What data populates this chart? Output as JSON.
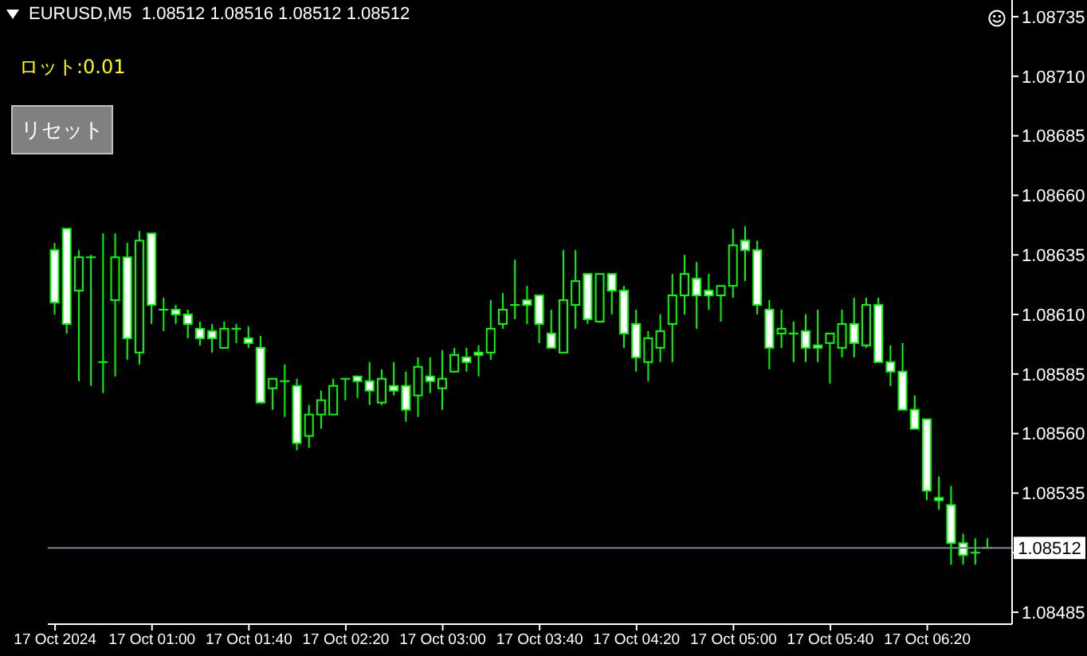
{
  "chart_data": {
    "type": "candlestick",
    "title": "EURUSD,M5  1.08512 1.08516 1.08512 1.08512",
    "annotations": [
      "ロット:0.01",
      "リセット"
    ],
    "color": "#00ff00",
    "x": [
      "2024-10-17T00:20",
      "2024-10-17T00:25",
      "2024-10-17T00:30",
      "2024-10-17T00:35",
      "2024-10-17T00:40",
      "2024-10-17T00:45",
      "2024-10-17T00:50",
      "2024-10-17T00:55",
      "2024-10-17T01:00",
      "2024-10-17T01:05",
      "2024-10-17T01:10",
      "2024-10-17T01:15",
      "2024-10-17T01:20",
      "2024-10-17T01:25",
      "2024-10-17T01:30",
      "2024-10-17T01:35",
      "2024-10-17T01:40",
      "2024-10-17T01:45",
      "2024-10-17T01:50",
      "2024-10-17T01:55",
      "2024-10-17T02:00",
      "2024-10-17T02:05",
      "2024-10-17T02:10",
      "2024-10-17T02:15",
      "2024-10-17T02:20",
      "2024-10-17T02:25",
      "2024-10-17T02:30",
      "2024-10-17T02:35",
      "2024-10-17T02:40",
      "2024-10-17T02:45",
      "2024-10-17T02:50",
      "2024-10-17T02:55",
      "2024-10-17T03:00",
      "2024-10-17T03:05",
      "2024-10-17T03:10",
      "2024-10-17T03:15",
      "2024-10-17T03:20",
      "2024-10-17T03:25",
      "2024-10-17T03:30",
      "2024-10-17T03:35",
      "2024-10-17T03:40",
      "2024-10-17T03:45",
      "2024-10-17T03:50",
      "2024-10-17T03:55",
      "2024-10-17T04:00",
      "2024-10-17T04:05",
      "2024-10-17T04:10",
      "2024-10-17T04:15",
      "2024-10-17T04:20",
      "2024-10-17T04:25",
      "2024-10-17T04:30",
      "2024-10-17T04:35",
      "2024-10-17T04:40",
      "2024-10-17T04:45",
      "2024-10-17T04:50",
      "2024-10-17T04:55",
      "2024-10-17T05:00",
      "2024-10-17T05:05",
      "2024-10-17T05:10",
      "2024-10-17T05:15",
      "2024-10-17T05:20",
      "2024-10-17T05:25",
      "2024-10-17T05:30",
      "2024-10-17T05:35",
      "2024-10-17T05:40",
      "2024-10-17T05:45",
      "2024-10-17T05:50",
      "2024-10-17T05:55",
      "2024-10-17T06:00",
      "2024-10-17T06:05",
      "2024-10-17T06:10",
      "2024-10-17T06:15",
      "2024-10-17T06:20",
      "2024-10-17T06:25",
      "2024-10-17T06:30",
      "2024-10-17T06:35",
      "2024-10-17T06:40",
      "2024-10-17T06:45"
    ],
    "ohlc": [
      [
        1.08637,
        1.0864,
        1.0861,
        1.08615
      ],
      [
        1.08646,
        1.08646,
        1.08602,
        1.08606
      ],
      [
        1.0862,
        1.08637,
        1.08582,
        1.08634
      ],
      [
        1.08634,
        1.08635,
        1.0858,
        1.08634
      ],
      [
        1.0859,
        1.08644,
        1.08577,
        1.0859
      ],
      [
        1.08616,
        1.08644,
        1.08584,
        1.08634
      ],
      [
        1.08634,
        1.0864,
        1.08591,
        1.086
      ],
      [
        1.08594,
        1.08645,
        1.08589,
        1.08641
      ],
      [
        1.08644,
        1.08644,
        1.08606,
        1.08614
      ],
      [
        1.08612,
        1.08617,
        1.08603,
        1.08612
      ],
      [
        1.08612,
        1.08614,
        1.08606,
        1.0861
      ],
      [
        1.0861,
        1.08612,
        1.086,
        1.08606
      ],
      [
        1.08604,
        1.08607,
        1.08597,
        1.086
      ],
      [
        1.08603,
        1.08606,
        1.08594,
        1.086
      ],
      [
        1.08596,
        1.08607,
        1.08596,
        1.08604
      ],
      [
        1.08604,
        1.08606,
        1.08598,
        1.08604
      ],
      [
        1.086,
        1.08605,
        1.08596,
        1.08598
      ],
      [
        1.08596,
        1.08601,
        1.08573,
        1.08573
      ],
      [
        1.08579,
        1.08583,
        1.0857,
        1.08583
      ],
      [
        1.08582,
        1.08589,
        1.08567,
        1.08582
      ],
      [
        1.0858,
        1.08583,
        1.08553,
        1.08556
      ],
      [
        1.08559,
        1.08572,
        1.08554,
        1.08568
      ],
      [
        1.08568,
        1.08578,
        1.08562,
        1.08574
      ],
      [
        1.08568,
        1.08583,
        1.08568,
        1.0858
      ],
      [
        1.08583,
        1.08583,
        1.08574,
        1.08583
      ],
      [
        1.08584,
        1.08584,
        1.08575,
        1.08582
      ],
      [
        1.08582,
        1.0859,
        1.08572,
        1.08578
      ],
      [
        1.08573,
        1.08587,
        1.08572,
        1.08583
      ],
      [
        1.0858,
        1.0859,
        1.08576,
        1.08578
      ],
      [
        1.0858,
        1.08586,
        1.08565,
        1.0857
      ],
      [
        1.08576,
        1.08592,
        1.08567,
        1.08588
      ],
      [
        1.08584,
        1.08592,
        1.08577,
        1.08582
      ],
      [
        1.08579,
        1.08595,
        1.0857,
        1.08583
      ],
      [
        1.08586,
        1.08596,
        1.08586,
        1.08593
      ],
      [
        1.08592,
        1.08596,
        1.08586,
        1.0859
      ],
      [
        1.08594,
        1.08597,
        1.08584,
        1.08593
      ],
      [
        1.08594,
        1.08616,
        1.08591,
        1.08604
      ],
      [
        1.08606,
        1.08619,
        1.08604,
        1.08612
      ],
      [
        1.08614,
        1.08633,
        1.08608,
        1.08614
      ],
      [
        1.08616,
        1.08622,
        1.08606,
        1.08614
      ],
      [
        1.08618,
        1.08618,
        1.08598,
        1.08606
      ],
      [
        1.08602,
        1.08612,
        1.08596,
        1.08596
      ],
      [
        1.08594,
        1.08637,
        1.08594,
        1.08616
      ],
      [
        1.08614,
        1.08637,
        1.08604,
        1.08624
      ],
      [
        1.08627,
        1.08627,
        1.08606,
        1.08608
      ],
      [
        1.08607,
        1.08627,
        1.08607,
        1.08627
      ],
      [
        1.08627,
        1.08627,
        1.0861,
        1.0862
      ],
      [
        1.0862,
        1.08622,
        1.08596,
        1.08602
      ],
      [
        1.08606,
        1.08612,
        1.08586,
        1.08592
      ],
      [
        1.0859,
        1.08603,
        1.08582,
        1.086
      ],
      [
        1.08596,
        1.0861,
        1.0859,
        1.08603
      ],
      [
        1.08606,
        1.08627,
        1.0859,
        1.08618
      ],
      [
        1.08618,
        1.08635,
        1.0861,
        1.08627
      ],
      [
        1.08625,
        1.08632,
        1.08604,
        1.08618
      ],
      [
        1.0862,
        1.08627,
        1.08612,
        1.08618
      ],
      [
        1.08618,
        1.08622,
        1.08607,
        1.08622
      ],
      [
        1.08622,
        1.08646,
        1.08617,
        1.08639
      ],
      [
        1.08641,
        1.08647,
        1.08624,
        1.08637
      ],
      [
        1.08637,
        1.08641,
        1.0861,
        1.08614
      ],
      [
        1.08612,
        1.08616,
        1.08587,
        1.08596
      ],
      [
        1.08602,
        1.08612,
        1.08596,
        1.08604
      ],
      [
        1.08602,
        1.08607,
        1.0859,
        1.08602
      ],
      [
        1.08603,
        1.0861,
        1.0859,
        1.08596
      ],
      [
        1.08597,
        1.08612,
        1.0859,
        1.08596
      ],
      [
        1.08598,
        1.08602,
        1.08581,
        1.08602
      ],
      [
        1.08596,
        1.08612,
        1.08592,
        1.08606
      ],
      [
        1.08606,
        1.08617,
        1.08592,
        1.08598
      ],
      [
        1.08597,
        1.08617,
        1.08596,
        1.08614
      ],
      [
        1.08614,
        1.08617,
        1.0859,
        1.0859
      ],
      [
        1.0859,
        1.08597,
        1.0858,
        1.08586
      ],
      [
        1.08586,
        1.08598,
        1.0857,
        1.0857
      ],
      [
        1.0857,
        1.08576,
        1.08562,
        1.08562
      ],
      [
        1.08566,
        1.08566,
        1.08532,
        1.08536
      ],
      [
        1.08533,
        1.08542,
        1.08528,
        1.08532
      ],
      [
        1.0853,
        1.08538,
        1.08505,
        1.08514
      ],
      [
        1.08514,
        1.08518,
        1.08505,
        1.08509
      ],
      [
        1.0851,
        1.08516,
        1.08505,
        1.0851
      ],
      [
        1.08512,
        1.08516,
        1.08512,
        1.08512
      ]
    ],
    "xlim": [
      "2024-10-17T00:17",
      "2024-10-17T06:55"
    ],
    "xticks": [
      {
        "value": "2024-10-17T00:20",
        "label": "17 Oct 2024"
      },
      {
        "value": "2024-10-17T01:00",
        "label": "17 Oct 01:00"
      },
      {
        "value": "2024-10-17T01:40",
        "label": "17 Oct 01:40"
      },
      {
        "value": "2024-10-17T02:20",
        "label": "17 Oct 02:20"
      },
      {
        "value": "2024-10-17T03:00",
        "label": "17 Oct 03:00"
      },
      {
        "value": "2024-10-17T03:40",
        "label": "17 Oct 03:40"
      },
      {
        "value": "2024-10-17T04:20",
        "label": "17 Oct 04:20"
      },
      {
        "value": "2024-10-17T05:00",
        "label": "17 Oct 05:00"
      },
      {
        "value": "2024-10-17T05:40",
        "label": "17 Oct 05:40"
      },
      {
        "value": "2024-10-17T06:20",
        "label": "17 Oct 06:20"
      }
    ],
    "ylim": [
      1.0848,
      1.08742
    ],
    "yticks": [
      1.08485,
      {
        "value": 1.0851,
        "label": null
      },
      1.08535,
      {
        "value": 1.0856,
        "label": "1.08560"
      },
      1.08585,
      {
        "value": 1.0861,
        "label": "1.08610"
      },
      1.08635,
      {
        "value": 1.0866,
        "label": "1.08660"
      },
      1.08685,
      {
        "value": 1.0871,
        "label": "1.08710"
      },
      1.08735
    ],
    "ref_lines": [
      {
        "axis": "y",
        "value": 1.08512,
        "label": "1.08512",
        "color": "#778899"
      }
    ]
  }
}
